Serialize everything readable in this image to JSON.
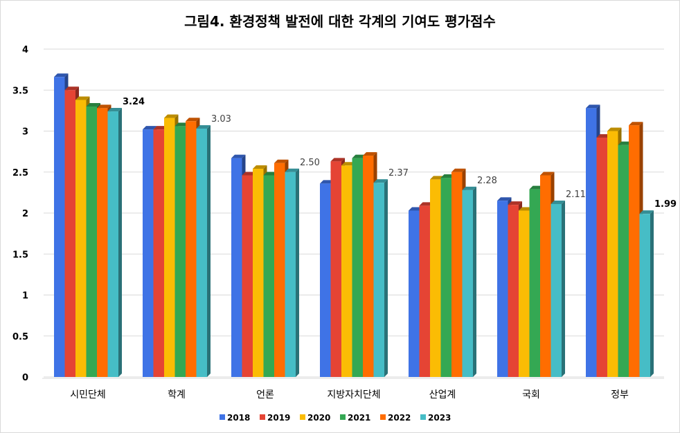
{
  "chart_data": {
    "type": "bar",
    "title": "그림4. 환경정책  발전에 대한 각계의 기여도 평가점수",
    "xlabel": "",
    "ylabel": "",
    "ylim": [
      0,
      4
    ],
    "yticks": [
      "0",
      "0.5",
      "1",
      "1.5",
      "2",
      "2.5",
      "3",
      "3.5",
      "4"
    ],
    "grid": true,
    "legend_position": "bottom",
    "categories": [
      "시민단체",
      "학계",
      "언론",
      "지방자치단체",
      "산업계",
      "국회",
      "정부"
    ],
    "series": [
      {
        "name": "2018",
        "color": "#3f73e6",
        "values": [
          3.66,
          3.02,
          2.67,
          2.36,
          2.03,
          2.15,
          3.28
        ]
      },
      {
        "name": "2019",
        "color": "#e54434",
        "values": [
          3.5,
          3.02,
          2.46,
          2.63,
          2.09,
          2.1,
          2.92
        ]
      },
      {
        "name": "2020",
        "color": "#fbbc04",
        "values": [
          3.38,
          3.16,
          2.54,
          2.58,
          2.41,
          2.03,
          3.0
        ]
      },
      {
        "name": "2021",
        "color": "#34a853",
        "values": [
          3.3,
          3.06,
          2.46,
          2.67,
          2.43,
          2.29,
          2.83
        ]
      },
      {
        "name": "2022",
        "color": "#ff6d01",
        "values": [
          3.28,
          3.12,
          2.61,
          2.7,
          2.5,
          2.46,
          3.07
        ]
      },
      {
        "name": "2023",
        "color": "#46bdc6",
        "values": [
          3.24,
          3.03,
          2.5,
          2.37,
          2.28,
          2.11,
          1.99
        ]
      }
    ],
    "data_labels": [
      "3.24",
      "3.03",
      "2.50",
      "2.37",
      "2.28",
      "2.11",
      "1.99"
    ],
    "bold_labels": [
      0,
      6
    ]
  }
}
